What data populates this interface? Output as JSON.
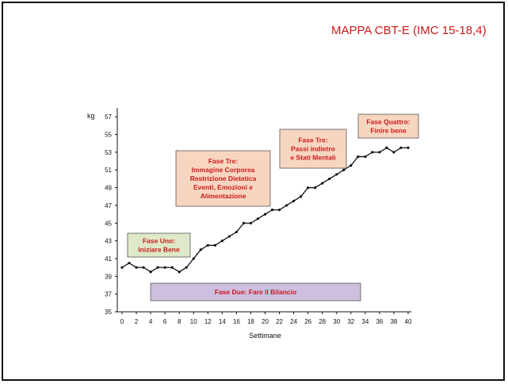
{
  "title": "MAPPA CBT-E (IMC 15-18,4)",
  "chart_data": {
    "type": "line",
    "ylabel": "kg",
    "xlabel": "Settimane",
    "ylim": [
      35,
      58
    ],
    "xlim": [
      0,
      40
    ],
    "yticks": [
      35,
      37,
      39,
      41,
      43,
      45,
      47,
      49,
      51,
      53,
      55,
      57
    ],
    "xticks": [
      0,
      2,
      4,
      6,
      8,
      10,
      12,
      14,
      16,
      18,
      20,
      22,
      24,
      26,
      28,
      30,
      32,
      34,
      36,
      38,
      40
    ],
    "x": [
      0,
      1,
      2,
      3,
      4,
      5,
      6,
      7,
      8,
      9,
      10,
      11,
      12,
      13,
      14,
      15,
      16,
      17,
      18,
      19,
      20,
      21,
      22,
      23,
      24,
      25,
      26,
      27,
      28,
      29,
      30,
      31,
      32,
      33,
      34,
      35,
      36,
      37,
      38,
      39,
      40
    ],
    "y": [
      40,
      40.5,
      40,
      40,
      39.5,
      40,
      40,
      40,
      39.5,
      40,
      41,
      42,
      42.5,
      42.5,
      43,
      43.5,
      44,
      45,
      45,
      45.5,
      46,
      46.5,
      46.5,
      47,
      47.5,
      48,
      49,
      49,
      49.5,
      50,
      50.5,
      51,
      51.5,
      52.5,
      52.5,
      53,
      53,
      53.5,
      53,
      53.5,
      53.5
    ],
    "annotations": [
      {
        "lines": [
          "Fase Uno:",
          "Iniziare Bene"
        ],
        "fill": "#dde9c8"
      },
      {
        "lines": [
          "Fase Due:  Fare il Bilancio"
        ],
        "fill": "#cdbfe0"
      },
      {
        "lines": [
          "Fase Tre:",
          "Immagine Corporea",
          "Restrizione Dietetica",
          "Eventi, Emozioni e",
          "Alimentazione"
        ],
        "fill": "#f7d6c1"
      },
      {
        "lines": [
          "Fase Tre:",
          "Passi indietro",
          "e Stati Mentali"
        ],
        "fill": "#f7d6c1"
      },
      {
        "lines": [
          "Fase Quattro:",
          "Finire bene"
        ],
        "fill": "#f7d6c1"
      }
    ],
    "colors": {
      "line": "#111111",
      "annotation_text": "#cc1a1a",
      "title": "#cc1a1a"
    }
  }
}
